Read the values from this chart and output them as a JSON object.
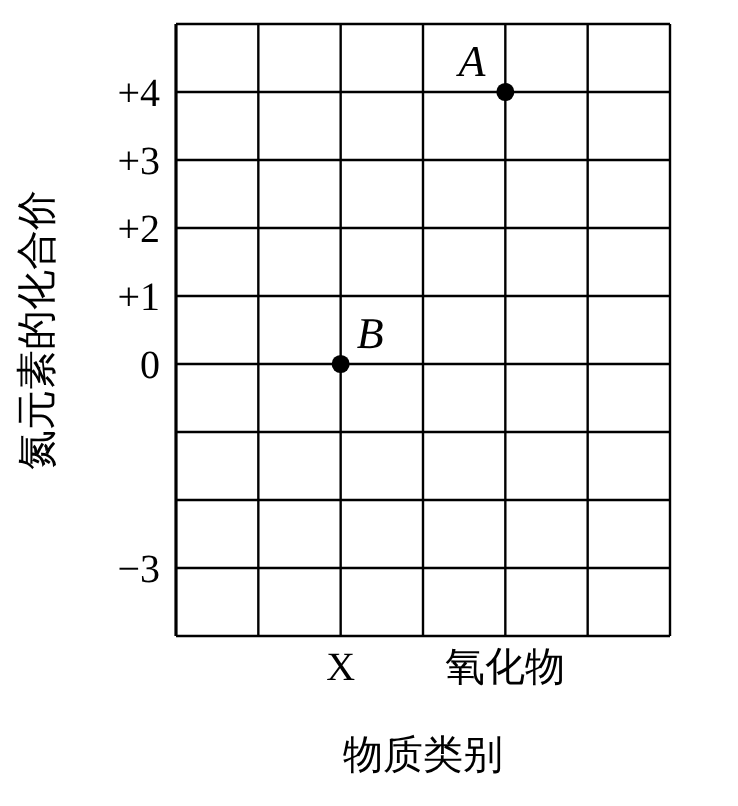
{
  "chart_data": {
    "type": "scatter",
    "xlabel": "物质类别",
    "ylabel": "氮元素的化合价",
    "categories": [
      null,
      "X",
      null,
      "氧化物",
      null,
      null
    ],
    "series": [
      {
        "color": "#000000",
        "x": [
          "X",
          "氧化物"
        ],
        "values": [
          0,
          4
        ]
      }
    ],
    "annotations": [
      {
        "text": "B",
        "x": "X",
        "y": 0
      },
      {
        "text": "A",
        "x": "氧化物",
        "y": 4
      }
    ],
    "ylim": [
      -4,
      5
    ],
    "yticks": [
      {
        "value": -4,
        "label": null
      },
      {
        "value": -3,
        "label": "−3"
      },
      {
        "value": -2,
        "label": null
      },
      {
        "value": -1,
        "label": null
      },
      0,
      {
        "value": 1,
        "label": "+1"
      },
      {
        "value": 2,
        "label": "+2"
      },
      {
        "value": 3,
        "label": "+3"
      },
      {
        "value": 4,
        "label": "+4"
      },
      {
        "value": 5,
        "label": null
      }
    ],
    "grid": true,
    "marker": "circle"
  }
}
